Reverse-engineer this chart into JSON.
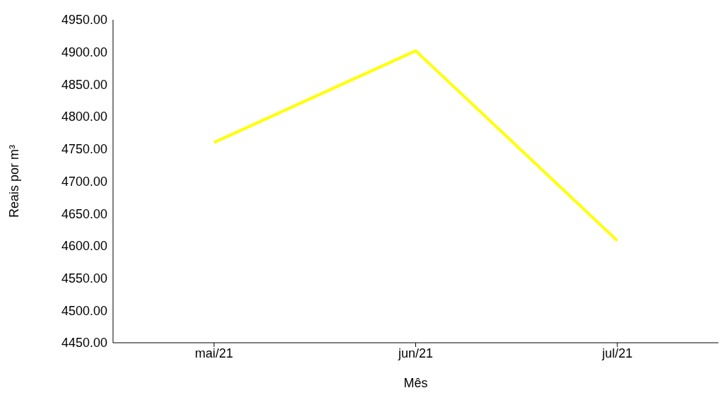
{
  "chart_data": {
    "type": "line",
    "xlabel": "Mês",
    "ylabel": "Reais por m³",
    "categories": [
      "mai/21",
      "jun/21",
      "jul/21"
    ],
    "series": [
      {
        "color": "#ffff00",
        "values": [
          4760,
          4902,
          4608
        ]
      }
    ],
    "ylim": [
      4450,
      4950
    ],
    "yticks": [
      {
        "value": 4450,
        "label": "4450.00"
      },
      {
        "value": 4500,
        "label": "4500.00"
      },
      {
        "value": 4550,
        "label": "4550.00"
      },
      {
        "value": 4600,
        "label": "4600.00"
      },
      {
        "value": 4650,
        "label": "4650.00"
      },
      {
        "value": 4700,
        "label": "4700.00"
      },
      {
        "value": 4750,
        "label": "4750.00"
      },
      {
        "value": 4800,
        "label": "4800.00"
      },
      {
        "value": 4850,
        "label": "4850.00"
      },
      {
        "value": 4900,
        "label": "4900.00"
      },
      {
        "value": 4950,
        "label": "4950.00"
      }
    ],
    "grid": false,
    "legend": false,
    "marker": "none",
    "line_style": "solid"
  }
}
